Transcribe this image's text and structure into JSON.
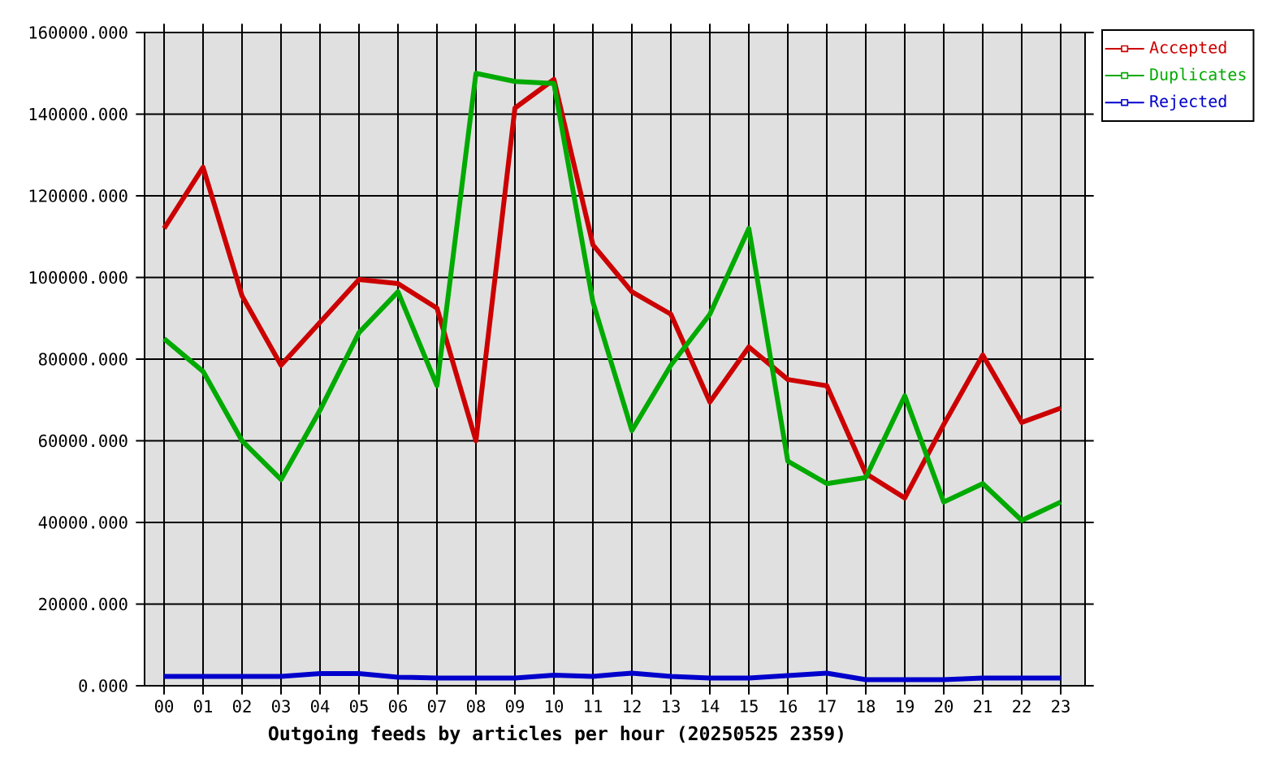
{
  "chart_data": {
    "type": "line",
    "xlabel": "Outgoing feeds by articles per hour (20250525 2359)",
    "categories": [
      "00",
      "01",
      "02",
      "03",
      "04",
      "05",
      "06",
      "07",
      "08",
      "09",
      "10",
      "11",
      "12",
      "13",
      "14",
      "15",
      "16",
      "17",
      "18",
      "19",
      "20",
      "21",
      "22",
      "23"
    ],
    "series": [
      {
        "name": "Accepted",
        "color": "#cc0000",
        "values": [
          112000,
          127000,
          95500,
          78500,
          89000,
          99500,
          98500,
          92500,
          60000,
          141500,
          148500,
          108000,
          96500,
          91000,
          69500,
          83000,
          75000,
          73500,
          52000,
          46000,
          64000,
          81000,
          64500,
          68000
        ]
      },
      {
        "name": "Duplicates",
        "color": "#00aa00",
        "values": [
          85000,
          77000,
          60000,
          50500,
          67500,
          86500,
          96500,
          73500,
          150000,
          148000,
          147500,
          94000,
          62500,
          78500,
          91000,
          112000,
          55000,
          49500,
          51000,
          71000,
          45000,
          49500,
          40500,
          45000
        ]
      },
      {
        "name": "Rejected",
        "color": "#0000cc",
        "values": [
          2300,
          2300,
          2300,
          2300,
          3000,
          3000,
          2100,
          1900,
          1900,
          1900,
          2600,
          2300,
          3100,
          2300,
          1900,
          1900,
          2500,
          3100,
          1500,
          1500,
          1500,
          1900,
          1900,
          1900
        ]
      }
    ],
    "ylim": [
      0,
      160000
    ],
    "yticks": [
      {
        "value": 0,
        "label": "0.000"
      },
      {
        "value": 20000,
        "label": "20000.000"
      },
      {
        "value": 40000,
        "label": "40000.000"
      },
      {
        "value": 60000,
        "label": "60000.000"
      },
      {
        "value": 80000,
        "label": "80000.000"
      },
      {
        "value": 100000,
        "label": "100000.000"
      },
      {
        "value": 120000,
        "label": "120000.000"
      },
      {
        "value": 140000,
        "label": "140000.000"
      },
      {
        "value": 160000,
        "label": "160000.000"
      }
    ],
    "grid": true,
    "legend": "top right"
  }
}
